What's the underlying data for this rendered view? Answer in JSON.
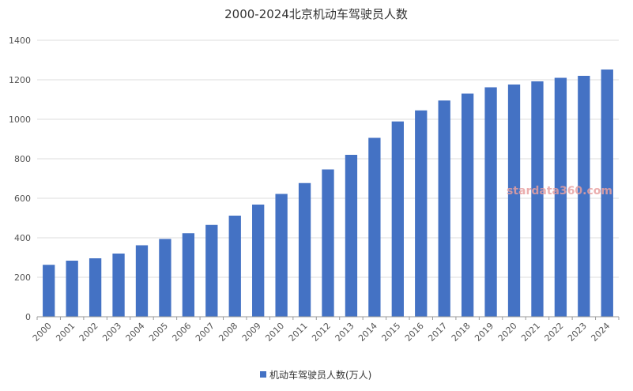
{
  "chart_data": {
    "type": "bar",
    "title": "2000-2024北京机动车驾驶员人数",
    "categories": [
      "2000",
      "2001",
      "2002",
      "2003",
      "2004",
      "2005",
      "2006",
      "2007",
      "2008",
      "2009",
      "2010",
      "2011",
      "2012",
      "2013",
      "2014",
      "2015",
      "2016",
      "2017",
      "2018",
      "2019",
      "2020",
      "2021",
      "2022",
      "2023",
      "2024"
    ],
    "series": [
      {
        "name": "机动车驾驶员人数(万人)",
        "color": "#4472c4",
        "values": [
          263,
          284,
          296,
          320,
          362,
          394,
          423,
          465,
          512,
          568,
          622,
          677,
          746,
          820,
          906,
          989,
          1045,
          1095,
          1130,
          1162,
          1176,
          1192,
          1210,
          1220,
          1252
        ]
      }
    ],
    "ylim": [
      0,
      1400
    ],
    "yticks": [
      0,
      200,
      400,
      600,
      800,
      1000,
      1200,
      1400
    ],
    "grid": true,
    "legend": "bottom-center",
    "watermark": "stardata360.com"
  }
}
